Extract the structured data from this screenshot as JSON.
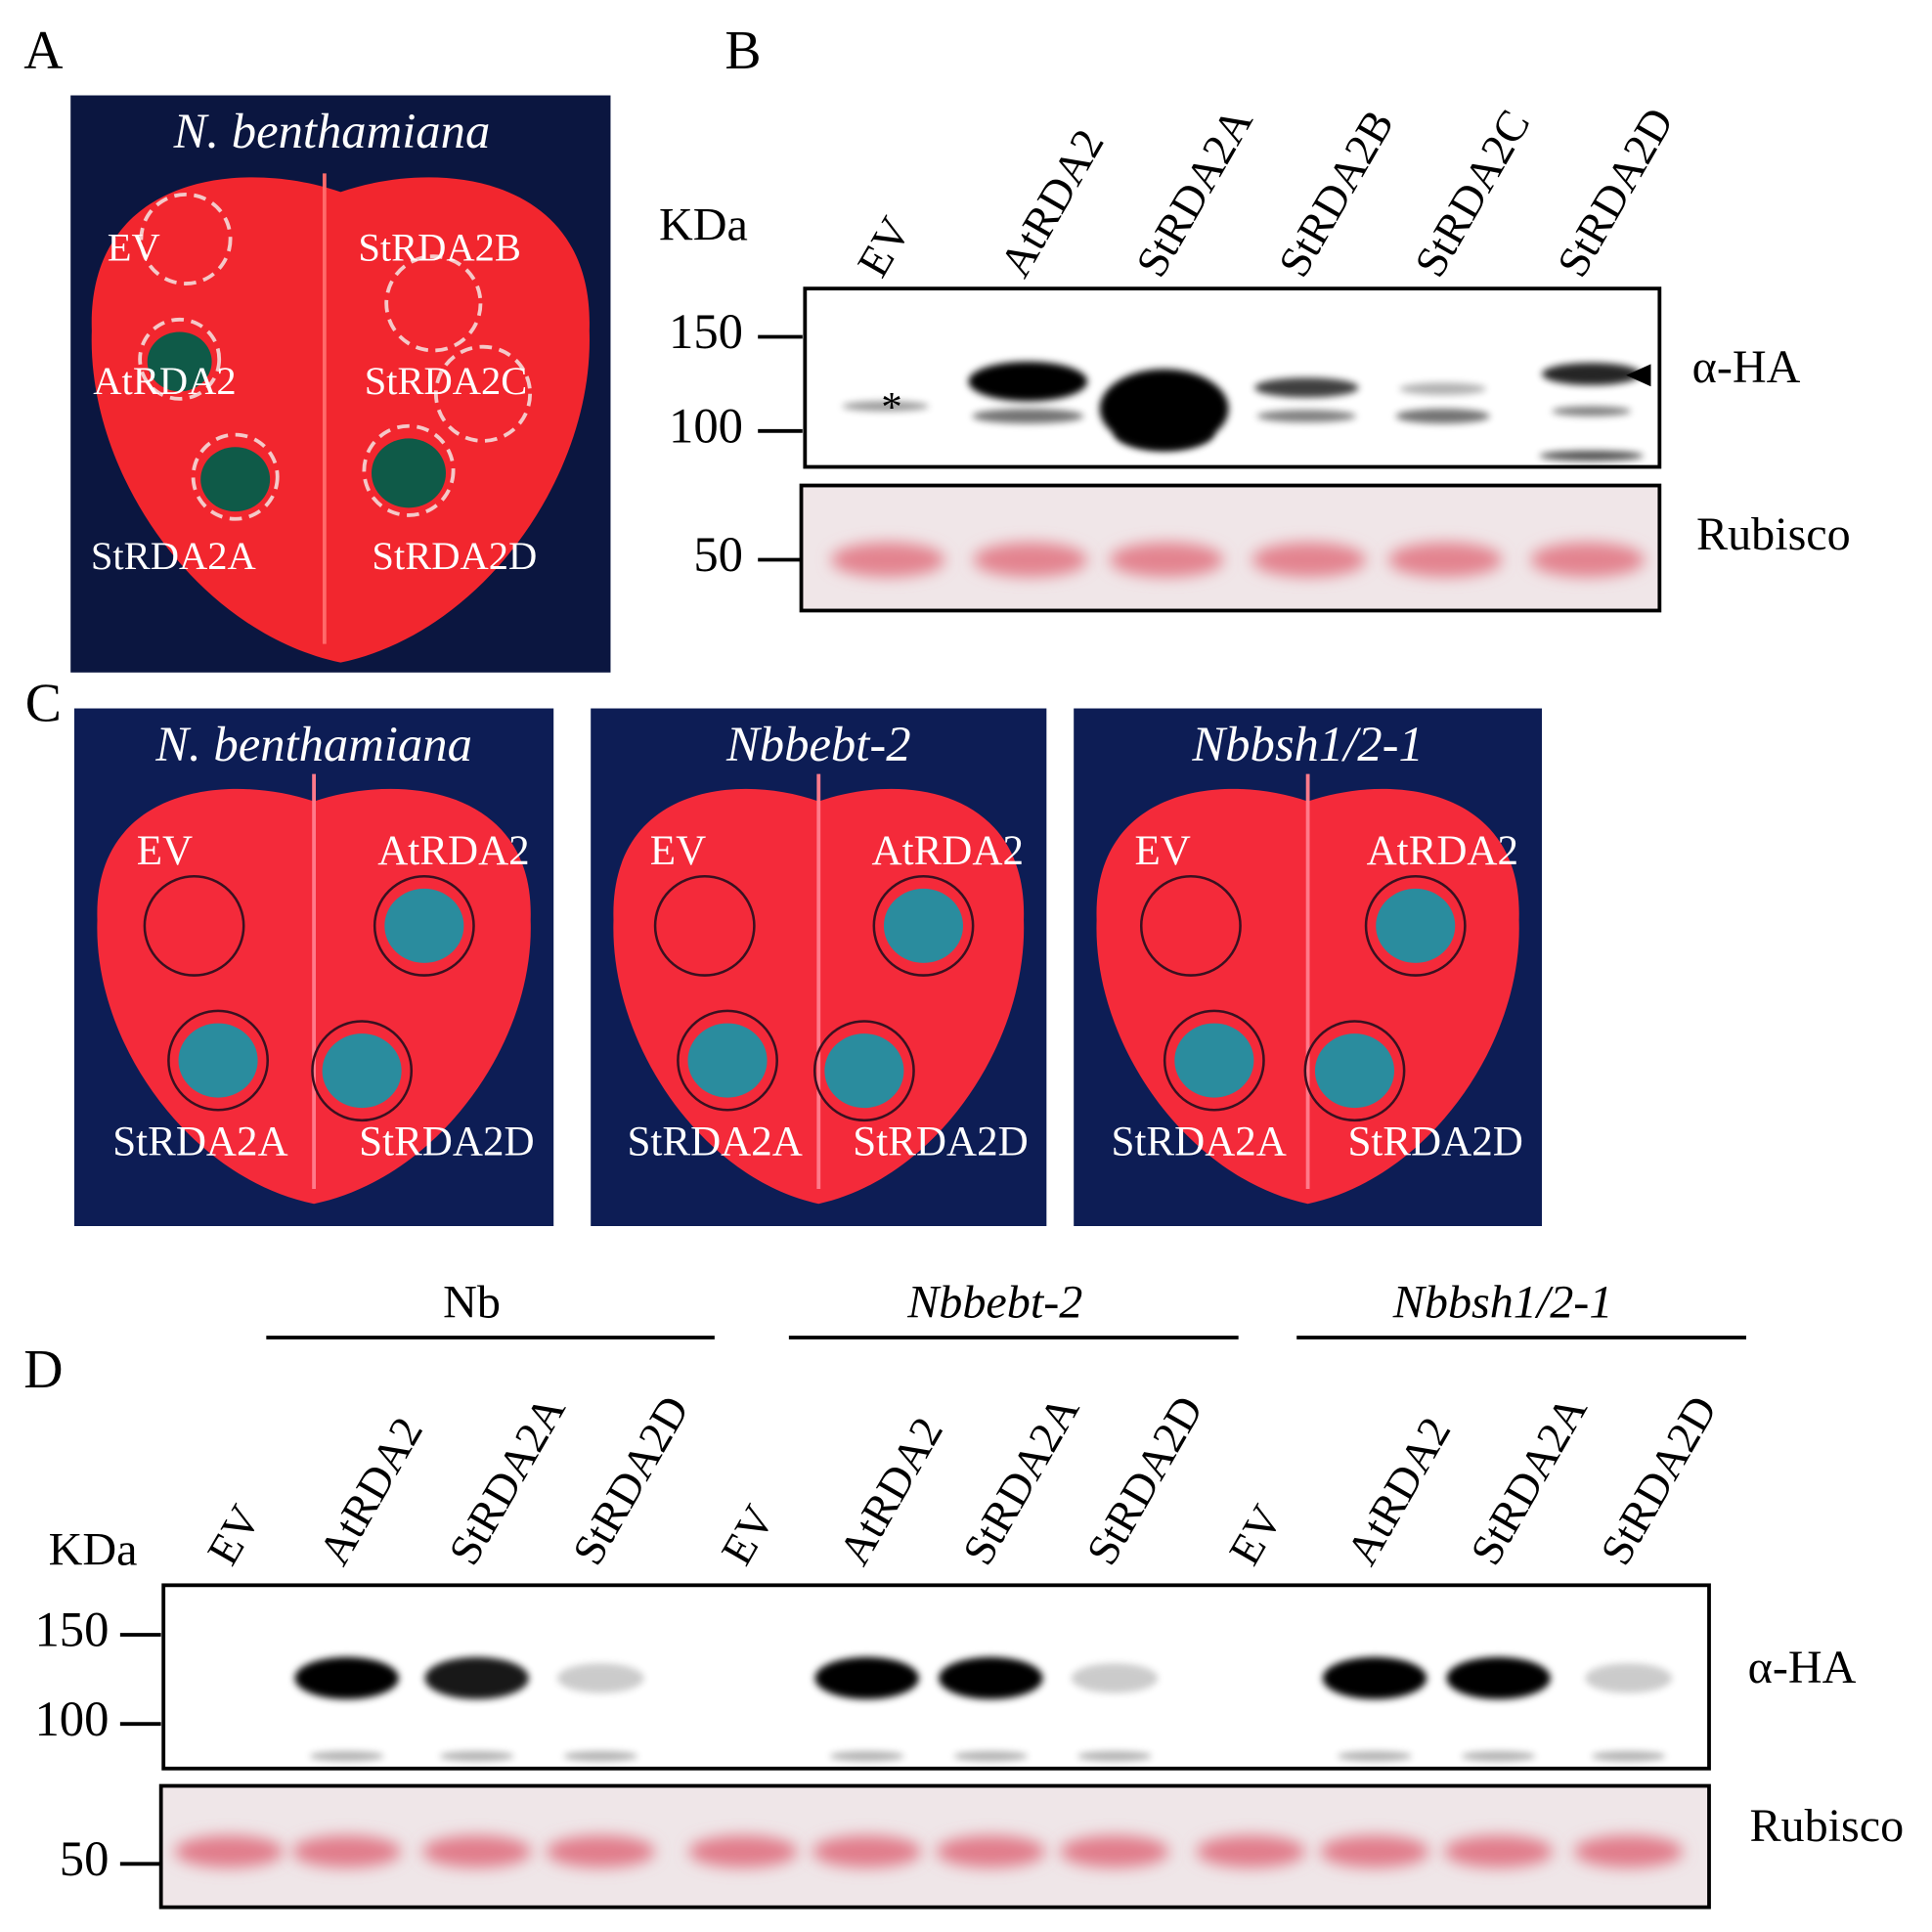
{
  "panel_a": {
    "label": "A",
    "title": "N. benthamiana",
    "spots": [
      "EV",
      "StRDA2B",
      "AtRDA2",
      "StRDA2C",
      "StRDA2A",
      "StRDA2D"
    ]
  },
  "panel_b": {
    "label": "B",
    "kda": "KDa",
    "lanes": [
      "EV",
      "AtRDA2",
      "StRDA2A",
      "StRDA2B",
      "StRDA2C",
      "StRDA2D"
    ],
    "markers": [
      150,
      100,
      50
    ],
    "antibody": "α-HA",
    "asterisk": "*",
    "loading": "Rubisco"
  },
  "panel_c": {
    "label": "C",
    "leaves": [
      {
        "title": "N. benthamiana",
        "spots": [
          "EV",
          "AtRDA2",
          "StRDA2A",
          "StRDA2D"
        ]
      },
      {
        "title": "Nbbebt-2",
        "spots": [
          "EV",
          "AtRDA2",
          "StRDA2A",
          "StRDA2D"
        ]
      },
      {
        "title": "Nbbsh1/2-1",
        "spots": [
          "EV",
          "AtRDA2",
          "StRDA2A",
          "StRDA2D"
        ]
      }
    ]
  },
  "panel_d": {
    "label": "D",
    "kda": "KDa",
    "groups": [
      {
        "name": "Nb",
        "lanes": [
          "EV",
          "AtRDA2",
          "StRDA2A",
          "StRDA2D"
        ]
      },
      {
        "name": "Nbbebt-2",
        "lanes": [
          "EV",
          "AtRDA2",
          "StRDA2A",
          "StRDA2D"
        ]
      },
      {
        "name": "Nbbsh1/2-1",
        "lanes": [
          "EV",
          "AtRDA2",
          "StRDA2A",
          "StRDA2D"
        ]
      }
    ],
    "markers": [
      150,
      100,
      50
    ],
    "antibody": "α-HA",
    "loading": "Rubisco"
  }
}
